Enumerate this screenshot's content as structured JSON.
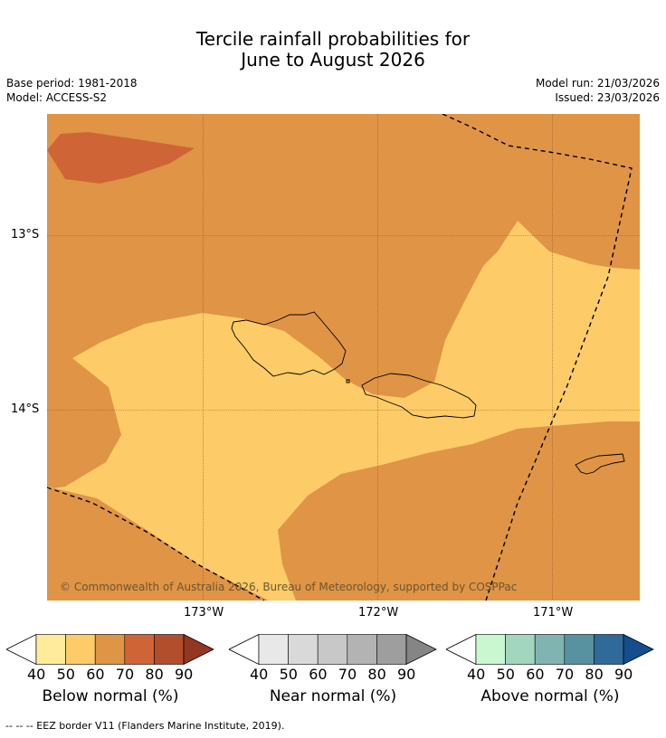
{
  "title": {
    "line1": "Tercile rainfall probabilities for",
    "line2": "June to August 2026"
  },
  "meta": {
    "base_period": "Base period: 1981-2018",
    "model": "Model: ACCESS-S2",
    "model_run": "Model run: 21/03/2026",
    "issued": "Issued: 23/03/2026"
  },
  "map": {
    "lat_labels": [
      "13°S",
      "14°S"
    ],
    "lon_labels": [
      "173°W",
      "172°W",
      "171°W"
    ],
    "copyright": "© Commonwealth of Australia 2026, Bureau of Meteorology, supported by COSPPac",
    "colors": {
      "prob_50_60": "#fdcb67",
      "prob_60_70": "#e09445",
      "prob_70_80": "#cf6536",
      "coast": "#000000",
      "grid": "#7a4a20"
    }
  },
  "colorbars": [
    {
      "label": "Below normal (%)",
      "ticks": [
        "40",
        "50",
        "60",
        "70",
        "80",
        "90"
      ],
      "colors": [
        "#ffffff",
        "#ffeb9a",
        "#fdcb67",
        "#e09445",
        "#cf6536",
        "#b24e2c",
        "#933723"
      ]
    },
    {
      "label": "Near normal (%)",
      "ticks": [
        "40",
        "50",
        "60",
        "70",
        "80",
        "90"
      ],
      "colors": [
        "#ffffff",
        "#e8e8e8",
        "#d9d9d9",
        "#c8c8c8",
        "#b3b3b3",
        "#9e9e9e",
        "#858585"
      ]
    },
    {
      "label": "Above normal (%)",
      "ticks": [
        "40",
        "50",
        "60",
        "70",
        "80",
        "90"
      ],
      "colors": [
        "#ffffff",
        "#c9f7d0",
        "#a3d6bf",
        "#80b4b1",
        "#5891a0",
        "#306a9b",
        "#154e8c"
      ]
    }
  ],
  "footer": "-- -- -- EEZ border V11 (Flanders Marine Institute, 2019)."
}
